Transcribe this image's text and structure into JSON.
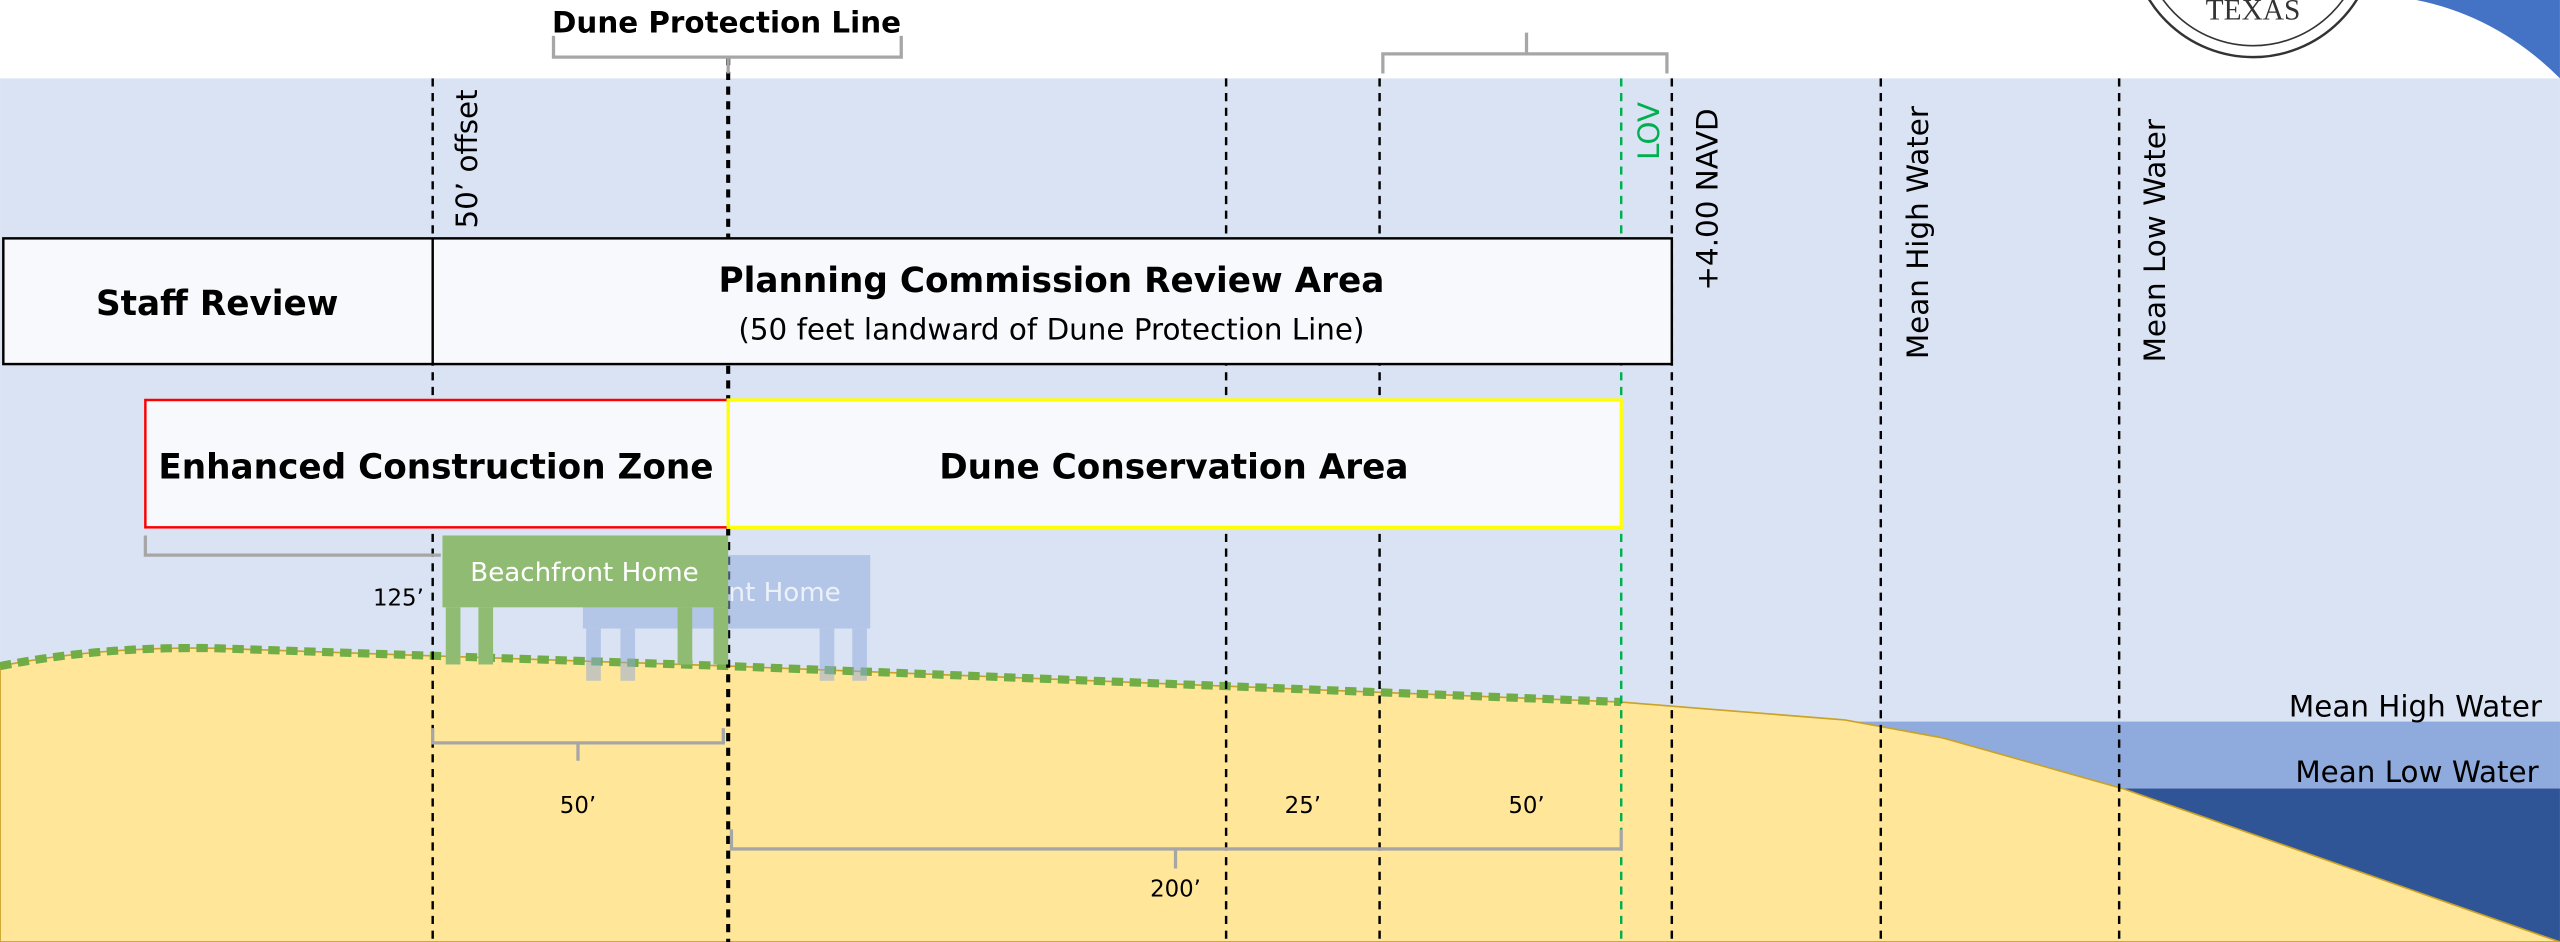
{
  "labels": {
    "dune_protection_line": "Dune Protection Line",
    "offset": "50’ offset",
    "lov": "LOV",
    "navd": "+4.00 NAVD",
    "mhw_vertical": "Mean High Water",
    "mlw_vertical": "Mean Low Water",
    "mhw_right": "Mean High Water",
    "mlw_right": "Mean Low Water"
  },
  "boxes": {
    "staff_review": "Staff Review",
    "planning_title": "Planning Commission Review Area",
    "planning_sub": "(50 feet landward of Dune Protection Line)",
    "enhanced": "Enhanced Construction Zone",
    "dune_conservation": "Dune Conservation Area"
  },
  "homes": [
    "Beachfront Home",
    "Beachfront Home"
  ],
  "dimensions": [
    "125’",
    "50’",
    "25’",
    "50’",
    "200’"
  ],
  "logo": "TEXAS"
}
